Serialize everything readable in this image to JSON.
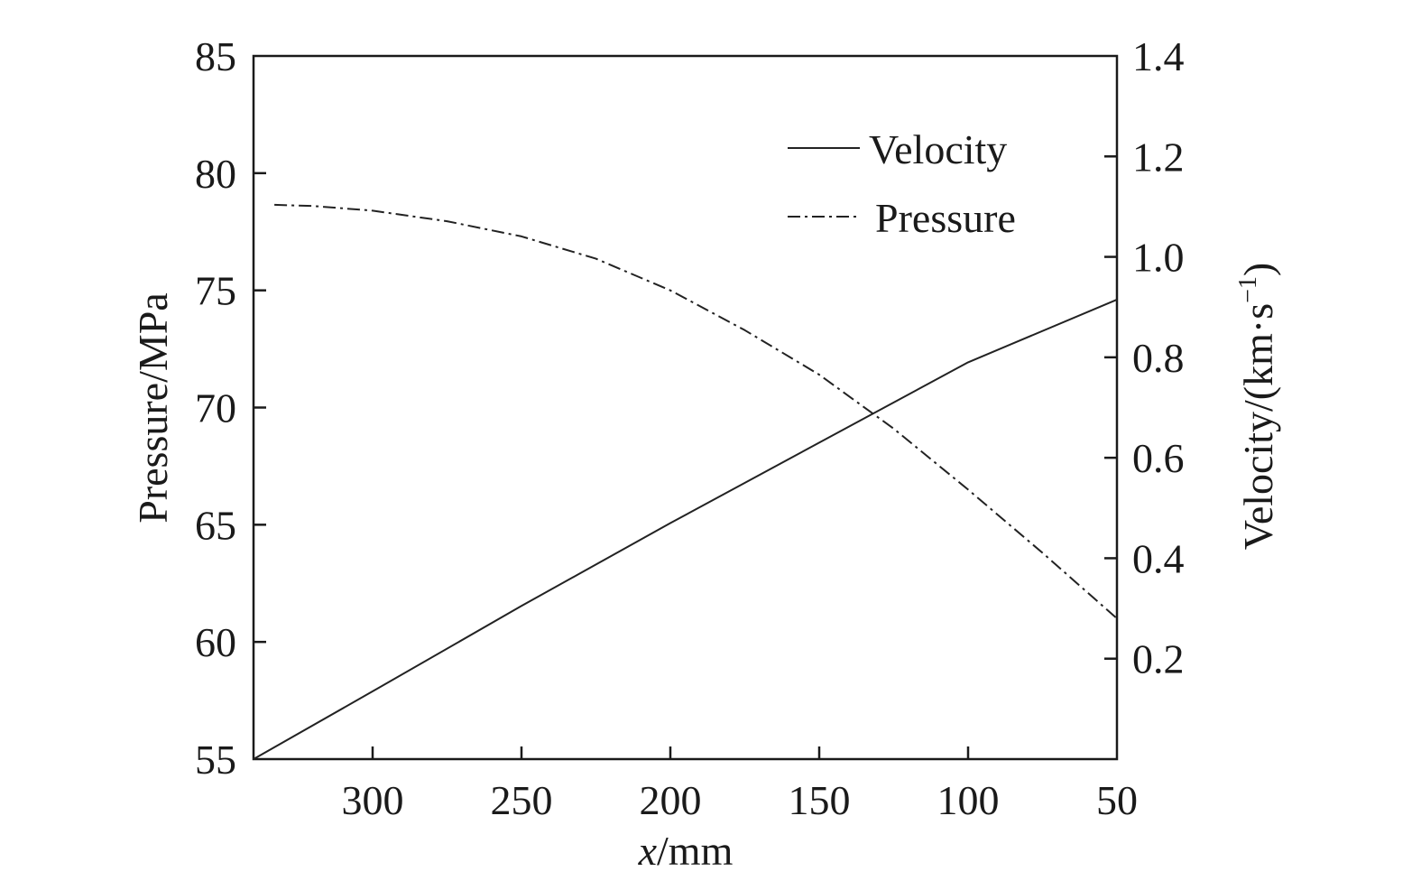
{
  "chart_data": {
    "type": "line",
    "title": "",
    "xlabel": {
      "var": "x",
      "unit": "/mm"
    },
    "ylabel_left": "Pressure/MPa",
    "ylabel_right": {
      "main": "Velocity/(km·s",
      "sup": "−1",
      "close": ")"
    },
    "xlim": [
      340,
      50
    ],
    "ylim_left": [
      55,
      85
    ],
    "ylim_right": [
      0,
      1.4
    ],
    "x_reversed": true,
    "grid": false,
    "legend_position": "top-right",
    "x_ticks": [
      300,
      250,
      200,
      150,
      100,
      50
    ],
    "x_tick_labels": [
      "300",
      "250",
      "200",
      "150",
      "100",
      "50"
    ],
    "y_left_ticks": [
      55,
      60,
      65,
      70,
      75,
      80,
      85
    ],
    "y_left_tick_labels": [
      "55",
      "60",
      "65",
      "70",
      "75",
      "80",
      "85"
    ],
    "y_right_ticks": [
      0.2,
      0.4,
      0.6,
      0.8,
      1.0,
      1.2,
      1.4
    ],
    "y_right_tick_labels": [
      "0.2",
      "0.4",
      "0.6",
      "0.8",
      "1.0",
      "1.2",
      "1.4"
    ],
    "series": [
      {
        "name": "Velocity",
        "axis": "right",
        "style": "solid",
        "color": "#222222",
        "x": [
          340,
          300,
          250,
          200,
          150,
          100,
          50
        ],
        "y": [
          0.0,
          0.135,
          0.305,
          0.47,
          0.63,
          0.79,
          0.915
        ]
      },
      {
        "name": "Pressure",
        "axis": "left",
        "style": "dash-dot",
        "color": "#222222",
        "x": [
          333,
          320,
          300,
          275,
          250,
          225,
          200,
          175,
          150,
          125,
          100,
          75,
          50
        ],
        "y": [
          78.65,
          78.6,
          78.4,
          77.95,
          77.3,
          76.35,
          75.0,
          73.3,
          71.4,
          69.1,
          66.5,
          63.8,
          61.0
        ]
      }
    ]
  }
}
